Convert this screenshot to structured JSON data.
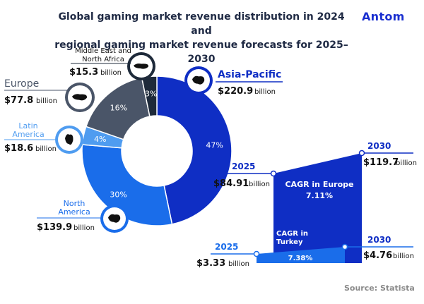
{
  "header": {
    "title_line1": "Global gaming market revenue distribution in 2024 and",
    "title_line2": "regional gaming market revenue forecasts for 2025–2030",
    "brand": "Antom"
  },
  "footer": {
    "source": "Source: Statista"
  },
  "colors": {
    "asia_pacific": "#0f2ec4",
    "north_america": "#1a6dea",
    "latin_america": "#4f9cf0",
    "europe": "#4a5568",
    "middle_east_north_africa": "#1e2a3a",
    "accent": "#1a2fd0",
    "dark_navy": "#0f2ec4"
  },
  "chart_data": [
    {
      "type": "pie",
      "title": "",
      "slices": [
        {
          "region": "Asia-Pacific",
          "value_label": "$220.9",
          "unit": "billion",
          "value": 220.9,
          "pct": 47,
          "pct_label": "47%",
          "icon": "asia-pacific-map-icon"
        },
        {
          "region": "North America",
          "value_label": "$139.9",
          "unit": "billion",
          "value": 139.9,
          "pct": 30,
          "pct_label": "30%",
          "icon": "north-america-map-icon"
        },
        {
          "region": "Latin America",
          "value_label": "$18.6",
          "unit": "billion",
          "value": 18.6,
          "pct": 4,
          "pct_label": "4%",
          "icon": "latin-america-map-icon"
        },
        {
          "region": "Europe",
          "value_label": "$77.8",
          "unit": "billion",
          "value": 77.8,
          "pct": 16,
          "pct_label": "16%",
          "icon": "europe-map-icon"
        },
        {
          "region": "Middle East and North Africa",
          "value_label": "$15.3",
          "unit": "billion",
          "value": 15.3,
          "pct": 3,
          "pct_label": "3%",
          "icon": "middle-east-map-icon"
        }
      ]
    },
    {
      "type": "area",
      "title": "",
      "series": [
        {
          "name": "CAGR in Europe",
          "cagr": "7.11%",
          "points": [
            {
              "x": "2025",
              "value": 84.91,
              "value_label": "$84.91",
              "unit": "billion"
            },
            {
              "x": "2030",
              "value": 119.7,
              "value_label": "$119.7",
              "unit": "billion"
            }
          ]
        },
        {
          "name": "CAGR in Turkey",
          "cagr": "7.38%",
          "points": [
            {
              "x": "2025",
              "value": 3.33,
              "value_label": "$3.33",
              "unit": "billion"
            },
            {
              "x": "2030",
              "value": 4.76,
              "value_label": "$4.76",
              "unit": "billion"
            }
          ]
        }
      ]
    }
  ]
}
